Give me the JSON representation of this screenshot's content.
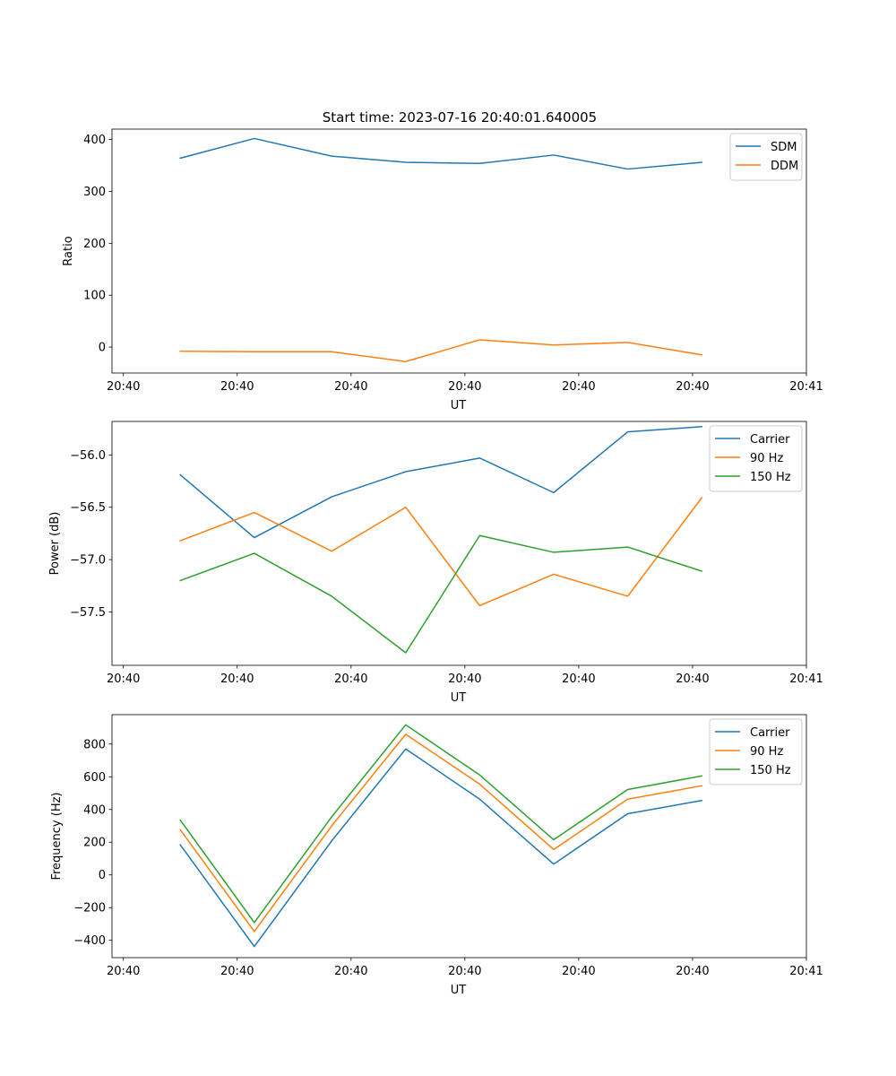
{
  "figure_title": "Start time: 2023-07-16 20:40:01.640005",
  "chart_data": [
    {
      "type": "line",
      "title": "Start time: 2023-07-16 20:40:01.640005",
      "xlabel": "UT",
      "ylabel": "Ratio",
      "x": [
        0.5,
        1.15,
        1.83,
        2.48,
        3.13,
        3.78,
        4.43,
        5.08
      ],
      "xlim": [
        -0.1,
        6.0
      ],
      "x_ticks": [
        0,
        1,
        2,
        3,
        4,
        5,
        6
      ],
      "x_tick_labels": [
        "20:40",
        "20:40",
        "20:40",
        "20:40",
        "20:40",
        "20:40",
        "20:41"
      ],
      "ylim": [
        -50,
        420
      ],
      "y_ticks": [
        0,
        100,
        200,
        300,
        400
      ],
      "y_tick_labels": [
        "0",
        "100",
        "200",
        "300",
        "400"
      ],
      "legend_position": "top-right",
      "series": [
        {
          "name": "SDM",
          "color": "#1f77b4",
          "values": [
            364,
            402,
            368,
            356,
            354,
            370,
            343,
            356
          ]
        },
        {
          "name": "DDM",
          "color": "#ff7f0e",
          "values": [
            -8,
            -9,
            -9,
            -28,
            14,
            4,
            9,
            -15
          ]
        }
      ]
    },
    {
      "type": "line",
      "title": "",
      "xlabel": "UT",
      "ylabel": "Power (dB)",
      "x": [
        0.5,
        1.15,
        1.83,
        2.48,
        3.13,
        3.78,
        4.43,
        5.08
      ],
      "xlim": [
        -0.1,
        6.0
      ],
      "x_ticks": [
        0,
        1,
        2,
        3,
        4,
        5,
        6
      ],
      "x_tick_labels": [
        "20:40",
        "20:40",
        "20:40",
        "20:40",
        "20:40",
        "20:40",
        "20:41"
      ],
      "ylim": [
        -58.01,
        -55.68
      ],
      "y_ticks": [
        -57.5,
        -57.0,
        -56.5,
        -56.0
      ],
      "y_tick_labels": [
        "−57.5",
        "−57.0",
        "−56.5",
        "−56.0"
      ],
      "legend_position": "top-right",
      "series": [
        {
          "name": "Carrier",
          "color": "#1f77b4",
          "values": [
            -56.19,
            -56.79,
            -56.4,
            -56.16,
            -56.03,
            -56.36,
            -55.78,
            -55.73
          ]
        },
        {
          "name": "90 Hz",
          "color": "#ff7f0e",
          "values": [
            -56.82,
            -56.55,
            -56.92,
            -56.5,
            -57.44,
            -57.14,
            -57.35,
            -56.41
          ]
        },
        {
          "name": "150 Hz",
          "color": "#2ca02c",
          "values": [
            -57.2,
            -56.94,
            -57.35,
            -57.89,
            -56.77,
            -56.93,
            -56.88,
            -57.11
          ]
        }
      ]
    },
    {
      "type": "line",
      "title": "",
      "xlabel": "UT",
      "ylabel": "Frequency (Hz)",
      "x": [
        0.5,
        1.15,
        1.83,
        2.48,
        3.13,
        3.78,
        4.43,
        5.08
      ],
      "xlim": [
        -0.1,
        6.0
      ],
      "x_ticks": [
        0,
        1,
        2,
        3,
        4,
        5,
        6
      ],
      "x_tick_labels": [
        "20:40",
        "20:40",
        "20:40",
        "20:40",
        "20:40",
        "20:40",
        "20:41"
      ],
      "ylim": [
        -506,
        980
      ],
      "y_ticks": [
        -400,
        -200,
        0,
        200,
        400,
        600,
        800
      ],
      "y_tick_labels": [
        "−400",
        "−200",
        "0",
        "200",
        "400",
        "600",
        "800"
      ],
      "legend_position": "top-right",
      "series": [
        {
          "name": "Carrier",
          "color": "#1f77b4",
          "values": [
            184,
            -438,
            208,
            770,
            463,
            66,
            374,
            455
          ]
        },
        {
          "name": "90 Hz",
          "color": "#ff7f0e",
          "values": [
            276,
            -346,
            300,
            860,
            555,
            155,
            463,
            545
          ]
        },
        {
          "name": "150 Hz",
          "color": "#2ca02c",
          "values": [
            335,
            -291,
            355,
            918,
            611,
            215,
            522,
            605
          ]
        }
      ]
    }
  ]
}
